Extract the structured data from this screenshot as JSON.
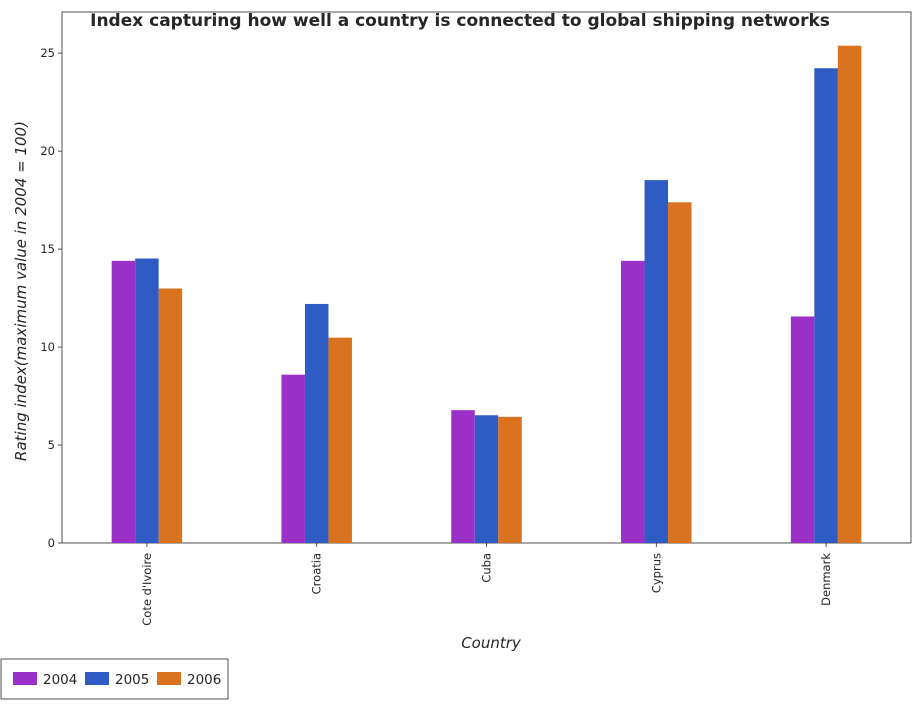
{
  "chart_data": {
    "type": "bar",
    "title": "Index capturing how well a country is connected to global shipping networks",
    "xlabel": "Country",
    "ylabel": "Rating index(maximum value in 2004 = 100)",
    "categories": [
      "Cote d'Ivoire",
      "Croatia",
      "Cuba",
      "Cyprus",
      "Denmark"
    ],
    "series": [
      {
        "name": "2004",
        "color": "#9B30C9",
        "values": [
          14.4,
          8.59,
          6.78,
          14.4,
          11.56
        ]
      },
      {
        "name": "2005",
        "color": "#2F5CC4",
        "values": [
          14.52,
          12.2,
          6.52,
          18.52,
          24.23
        ]
      },
      {
        "name": "2006",
        "color": "#D9731F",
        "values": [
          12.99,
          10.48,
          6.44,
          17.39,
          25.38
        ]
      }
    ],
    "ylim": [
      0,
      27.1
    ],
    "yticks": [
      0,
      5,
      10,
      15,
      20,
      25
    ],
    "grid": false,
    "legend_position": "bottom-left"
  }
}
